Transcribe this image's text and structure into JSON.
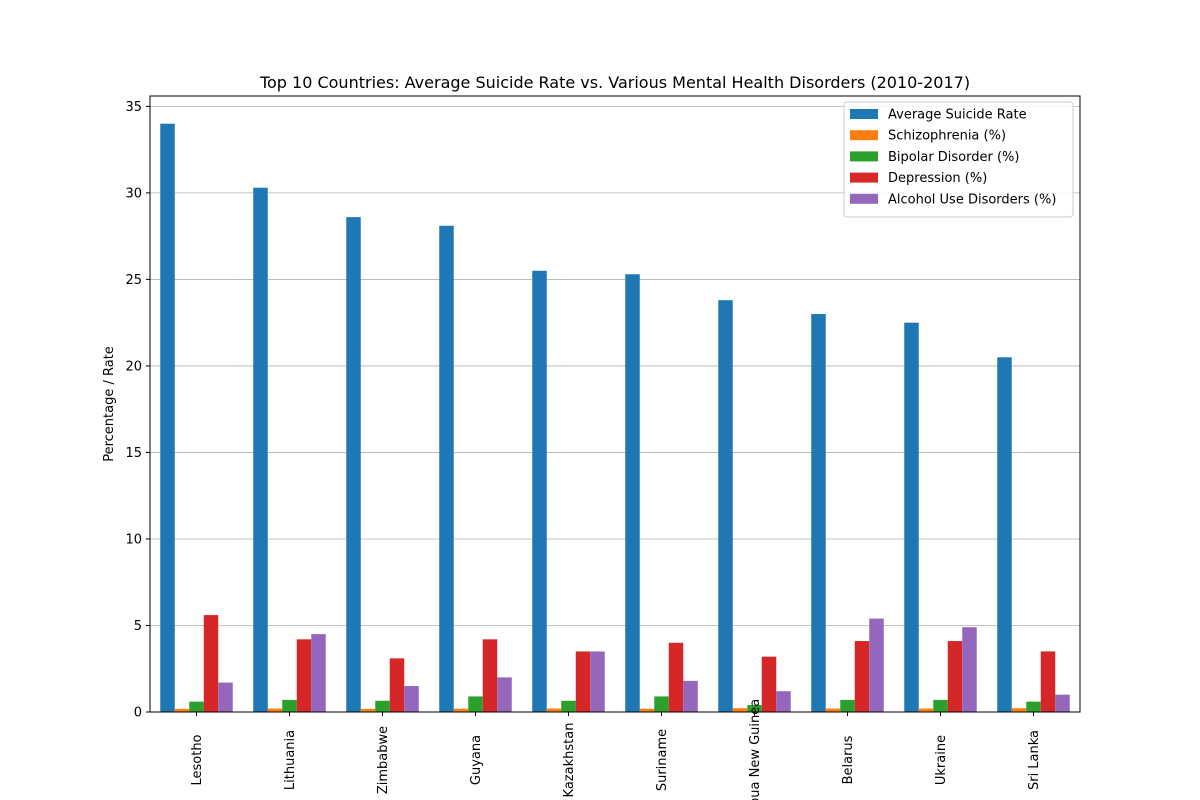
{
  "chart_data": {
    "type": "bar",
    "title": "Top 10 Countries: Average Suicide Rate vs. Various Mental Health Disorders (2010-2017)",
    "xlabel": "",
    "ylabel": "Percentage / Rate",
    "ylim": [
      0,
      35.6
    ],
    "yticks": [
      0,
      5,
      10,
      15,
      20,
      25,
      30,
      35
    ],
    "grid": "horizontal",
    "legend_position": "top-right",
    "categories": [
      "Lesotho",
      "Lithuania",
      "Zimbabwe",
      "Guyana",
      "Kazakhstan",
      "Suriname",
      "Papua New Guinea",
      "Belarus",
      "Ukraine",
      "Sri Lanka"
    ],
    "series": [
      {
        "name": "Average Suicide Rate",
        "color": "#1f77b4",
        "values": [
          34.0,
          30.3,
          28.6,
          28.1,
          25.5,
          25.3,
          23.8,
          23.0,
          22.5,
          20.5
        ]
      },
      {
        "name": "Schizophrenia (%)",
        "color": "#ff7f0e",
        "values": [
          0.18,
          0.2,
          0.18,
          0.19,
          0.2,
          0.19,
          0.22,
          0.2,
          0.2,
          0.22
        ]
      },
      {
        "name": "Bipolar Disorder (%)",
        "color": "#2ca02c",
        "values": [
          0.6,
          0.7,
          0.65,
          0.9,
          0.65,
          0.9,
          0.4,
          0.7,
          0.7,
          0.6
        ]
      },
      {
        "name": "Depression (%)",
        "color": "#d62728",
        "values": [
          5.6,
          4.2,
          3.1,
          4.2,
          3.5,
          4.0,
          3.2,
          4.1,
          4.1,
          3.5
        ]
      },
      {
        "name": "Alcohol Use Disorders (%)",
        "color": "#9467bd",
        "values": [
          1.7,
          4.5,
          1.5,
          2.0,
          3.5,
          1.8,
          1.2,
          5.4,
          4.9,
          1.0
        ]
      }
    ]
  }
}
